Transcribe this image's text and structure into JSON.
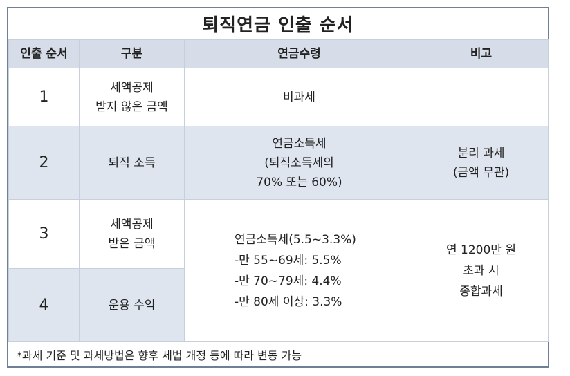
{
  "title": "퇴직연금 인출 순서",
  "headers": [
    "인출 순서",
    "구분",
    "연금수령",
    "비고"
  ],
  "rows": [
    {
      "order": "1",
      "category": [
        "세액공제",
        "받지 않은 금액"
      ],
      "receipt": [
        "비과세"
      ]
    },
    {
      "order": "2",
      "category": [
        "퇴직 소득"
      ],
      "receipt": [
        "연금소득세",
        "(퇴직소득세의",
        "70% 또는 60%)"
      ],
      "note": [
        "분리 과세",
        "(금액 무관)"
      ]
    },
    {
      "order": "3",
      "category": [
        "세액공제",
        "받은 금액"
      ]
    },
    {
      "order": "4",
      "category": [
        "운용 수익"
      ]
    }
  ],
  "merged_receipt": [
    "연금소득세(5.5~3.3%)",
    "-만 55~69세: 5.5%",
    "-만 70~79세: 4.4%",
    "-만 80세 이상: 3.3%"
  ],
  "merged_note": [
    "연 1200만 원",
    "초과 시",
    "종합과세"
  ],
  "footnote": "*과세 기준 및 과세방법은 향후 세법 개정 등에 따라 변동 가능",
  "colors": {
    "border": "#6f7f95",
    "header_bg": "#d6dde8",
    "shade_bg": "#dfe5ee"
  }
}
